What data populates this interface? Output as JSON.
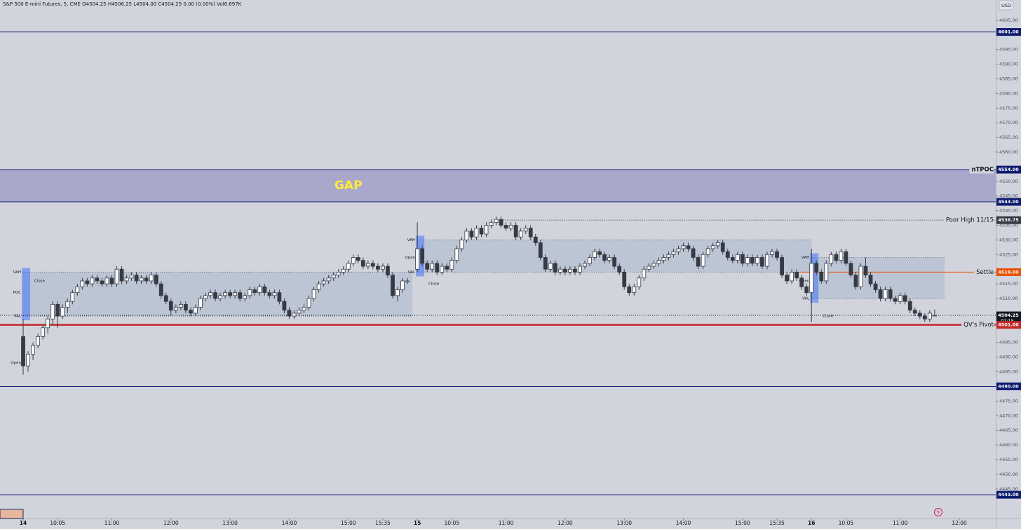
{
  "chart_data": {
    "type": "candlestick",
    "header": {
      "symbol": "S&P 500 E-mini Futures, 5, CME",
      "ohlc": "O4504.25 H4506.25 L4504.00 C4504.25",
      "change": "0.00 (0.00%)",
      "volume": "Vol6.697K"
    },
    "currency": "USD",
    "up_color": "#ffffff",
    "down_color": "#363a45",
    "xlim": [
      -4.7,
      197.4
    ],
    "ylim": [
      4434.9,
      4611.9
    ],
    "xticks": [
      {
        "value": 0,
        "label": "14"
      },
      {
        "value": 7,
        "label": "10:05"
      },
      {
        "value": 18,
        "label": "11:00"
      },
      {
        "value": 30,
        "label": "12:00"
      },
      {
        "value": 42,
        "label": "13:00"
      },
      {
        "value": 54,
        "label": "14:00"
      },
      {
        "value": 66,
        "label": "15:00"
      },
      {
        "value": 73,
        "label": "15:35"
      },
      {
        "value": 80,
        "label": "15"
      },
      {
        "value": 87,
        "label": "10:05"
      },
      {
        "value": 98,
        "label": "11:00"
      },
      {
        "value": 110,
        "label": "12:00"
      },
      {
        "value": 122,
        "label": "13:00"
      },
      {
        "value": 134,
        "label": "14:00"
      },
      {
        "value": 146,
        "label": "15:00"
      },
      {
        "value": 153,
        "label": "15:35"
      },
      {
        "value": 160,
        "label": "16"
      },
      {
        "value": 167,
        "label": "10:05"
      },
      {
        "value": 178,
        "label": "11:00"
      },
      {
        "value": 190,
        "label": "12:00"
      }
    ],
    "yticks": [
      {
        "value": 4605,
        "label": "4605.00"
      },
      {
        "value": 4595,
        "label": "4595.00"
      },
      {
        "value": 4590,
        "label": "4590.00"
      },
      {
        "value": 4585,
        "label": "4585.00"
      },
      {
        "value": 4580,
        "label": "4580.00"
      },
      {
        "value": 4575,
        "label": "4575.00"
      },
      {
        "value": 4570,
        "label": "4570.00"
      },
      {
        "value": 4565,
        "label": "4565.00"
      },
      {
        "value": 4560,
        "label": "4560.00"
      },
      {
        "value": 4550,
        "label": "4550.00"
      },
      {
        "value": 4545,
        "label": "4545.00"
      },
      {
        "value": 4540,
        "label": "4540.00"
      },
      {
        "value": 4535,
        "label": "4535.00"
      },
      {
        "value": 4530,
        "label": "4530.00"
      },
      {
        "value": 4525,
        "label": "4525.00"
      },
      {
        "value": 4515,
        "label": "4515.00"
      },
      {
        "value": 4510,
        "label": "4510.00"
      },
      {
        "value": 4495,
        "label": "4495.00"
      },
      {
        "value": 4490,
        "label": "4490.00"
      },
      {
        "value": 4485,
        "label": "4485.00"
      },
      {
        "value": 4475,
        "label": "4475.00"
      },
      {
        "value": 4470,
        "label": "4470.00"
      },
      {
        "value": 4465,
        "label": "4465.00"
      },
      {
        "value": 4460,
        "label": "4460.00"
      },
      {
        "value": 4455,
        "label": "4455.00"
      },
      {
        "value": 4450,
        "label": "4450.00"
      },
      {
        "value": 4445,
        "label": "4445.00"
      }
    ],
    "gap": {
      "from": 4543,
      "to": 4554,
      "label": "GAP",
      "color": "#a9a8cc",
      "label_color": "#ffeb3b"
    },
    "levels": [
      {
        "value": 4601,
        "label": "4601.00",
        "color": "#0d1b6e",
        "style": "solid"
      },
      {
        "value": 4554,
        "label": "4554.00",
        "color": "#0d1b6e",
        "style": "solid",
        "name": "nTPOC"
      },
      {
        "value": 4543,
        "label": "4543.00",
        "color": "#0d1b6e",
        "style": "solid"
      },
      {
        "value": 4536.75,
        "label": "4536.75",
        "color": "#363a45",
        "style": "dotted",
        "from": 97,
        "name": "Poor High 11/15"
      },
      {
        "value": 4519,
        "label": "4519.00",
        "color": "#e65100",
        "style": "solid",
        "from": 157,
        "name": "Settle"
      },
      {
        "value": 4504.25,
        "label": "4504.25",
        "countdown": "02:15",
        "color": "#131722",
        "style": "dotted"
      },
      {
        "value": 4501,
        "label": "4501.00",
        "color": "#c62828",
        "style": "solid",
        "line_width": 2.5,
        "name": "QV's Pivot"
      },
      {
        "value": 4480,
        "label": "4480.00",
        "color": "#0d1b6e",
        "style": "solid"
      },
      {
        "value": 4443,
        "label": "4443.00",
        "color": "#0d1b6e",
        "style": "solid"
      }
    ],
    "value_areas": [
      {
        "start": 0,
        "end": 79,
        "vah": 4519,
        "val": 4504,
        "marks": [
          {
            "label": "VAH",
            "value": 4519
          },
          {
            "label": "POC",
            "value": 4512
          },
          {
            "label": "VAL",
            "value": 4504
          },
          {
            "label": "Open",
            "value": 4488
          }
        ],
        "close": {
          "label": "Close",
          "value": 4516
        }
      },
      {
        "start": 80,
        "end": 160,
        "vah": 4530,
        "val": 4519,
        "marks": [
          {
            "label": "VAH",
            "value": 4530
          },
          {
            "label": "Open",
            "value": 4524
          },
          {
            "label": "VAL",
            "value": 4519
          }
        ],
        "close": {
          "label": "Close",
          "value": 4515
        }
      },
      {
        "start": 160,
        "end": 187,
        "vah": 4524,
        "val": 4510,
        "marks": [
          {
            "label": "VAH",
            "value": 4524
          },
          {
            "label": "Open",
            "value": 4516
          },
          {
            "label": "VAL",
            "value": 4510
          }
        ],
        "close": {
          "label": "Close",
          "value": 4504
        }
      }
    ],
    "candles": [
      [
        4497,
        4503,
        4484,
        4487
      ],
      [
        4487,
        4492,
        4485,
        4491
      ],
      [
        4491,
        4495,
        4489,
        4494
      ],
      [
        4494,
        4498,
        4493,
        4497
      ],
      [
        4497,
        4501,
        4496,
        4500
      ],
      [
        4500,
        4504,
        4498,
        4503
      ],
      [
        4503,
        4509,
        4501,
        4508
      ],
      [
        4508,
        4509,
        4500,
        4504
      ],
      [
        4504,
        4508,
        4503,
        4507
      ],
      [
        4507,
        4510,
        4505,
        4509
      ],
      [
        4509,
        4513,
        4508,
        4512
      ],
      [
        4512,
        4515,
        4511,
        4514
      ],
      [
        4514,
        4517,
        4513,
        4516
      ],
      [
        4516,
        4517,
        4514,
        4515
      ],
      [
        4515,
        4518,
        4514,
        4517
      ],
      [
        4517,
        4518,
        4515,
        4516
      ],
      [
        4516,
        4517,
        4514,
        4515
      ],
      [
        4515,
        4518,
        4514,
        4517
      ],
      [
        4517,
        4518,
        4514,
        4515
      ],
      [
        4515,
        4521,
        4514,
        4520
      ],
      [
        4520,
        4521,
        4515,
        4516
      ],
      [
        4516,
        4518,
        4515,
        4517
      ],
      [
        4517,
        4519,
        4516,
        4518
      ],
      [
        4518,
        4519,
        4515,
        4516
      ],
      [
        4516,
        4518,
        4515,
        4517
      ],
      [
        4517,
        4518,
        4515,
        4516
      ],
      [
        4516,
        4519,
        4515,
        4518
      ],
      [
        4518,
        4519,
        4514,
        4515
      ],
      [
        4515,
        4516,
        4510,
        4511
      ],
      [
        4511,
        4512,
        4508,
        4509
      ],
      [
        4509,
        4510,
        4504,
        4506
      ],
      [
        4506,
        4508,
        4505,
        4507
      ],
      [
        4507,
        4509,
        4506,
        4508
      ],
      [
        4508,
        4509,
        4505,
        4506
      ],
      [
        4506,
        4507,
        4504,
        4505
      ],
      [
        4505,
        4508,
        4504,
        4507
      ],
      [
        4507,
        4511,
        4506,
        4510
      ],
      [
        4510,
        4512,
        4509,
        4511
      ],
      [
        4511,
        4513,
        4510,
        4512
      ],
      [
        4512,
        4513,
        4509,
        4510
      ],
      [
        4510,
        4512,
        4509,
        4511
      ],
      [
        4511,
        4513,
        4510,
        4512
      ],
      [
        4512,
        4513,
        4510,
        4511
      ],
      [
        4511,
        4513,
        4510,
        4512
      ],
      [
        4512,
        4513,
        4509,
        4510
      ],
      [
        4510,
        4512,
        4509,
        4511
      ],
      [
        4511,
        4514,
        4510,
        4513
      ],
      [
        4513,
        4514,
        4511,
        4512
      ],
      [
        4512,
        4515,
        4511,
        4514
      ],
      [
        4514,
        4515,
        4511,
        4512
      ],
      [
        4512,
        4513,
        4510,
        4511
      ],
      [
        4511,
        4513,
        4510,
        4512
      ],
      [
        4512,
        4513,
        4508,
        4509
      ],
      [
        4509,
        4510,
        4505,
        4506
      ],
      [
        4506,
        4507,
        4503,
        4504
      ],
      [
        4504,
        4506,
        4503,
        4505
      ],
      [
        4505,
        4507,
        4504,
        4506
      ],
      [
        4506,
        4508,
        4505,
        4507
      ],
      [
        4507,
        4511,
        4506,
        4510
      ],
      [
        4510,
        4514,
        4509,
        4513
      ],
      [
        4513,
        4516,
        4512,
        4515
      ],
      [
        4515,
        4517,
        4514,
        4516
      ],
      [
        4516,
        4518,
        4515,
        4517
      ],
      [
        4517,
        4519,
        4516,
        4518
      ],
      [
        4518,
        4520,
        4517,
        4519
      ],
      [
        4519,
        4521,
        4518,
        4520
      ],
      [
        4520,
        4523,
        4519,
        4522
      ],
      [
        4522,
        4525,
        4521,
        4524
      ],
      [
        4524,
        4525,
        4522,
        4523
      ],
      [
        4523,
        4524,
        4520,
        4521
      ],
      [
        4521,
        4523,
        4520,
        4522
      ],
      [
        4522,
        4523,
        4520,
        4521
      ],
      [
        4521,
        4522,
        4519,
        4520
      ],
      [
        4520,
        4522,
        4519,
        4521
      ],
      [
        4521,
        4522,
        4517,
        4518
      ],
      [
        4518,
        4519,
        4510,
        4511
      ],
      [
        4511,
        4514,
        4509,
        4513
      ],
      [
        4513,
        4517,
        4512,
        4516
      ],
      [
        4516,
        4517,
        4515,
        4516
      ],
      null,
      [
        4520,
        4536,
        4519,
        4527
      ],
      [
        4527,
        4528,
        4521,
        4522
      ],
      [
        4522,
        4523,
        4519,
        4520
      ],
      [
        4520,
        4523,
        4519,
        4522
      ],
      [
        4522,
        4523,
        4518,
        4519
      ],
      [
        4519,
        4522,
        4518,
        4521
      ],
      [
        4521,
        4522,
        4519,
        4520
      ],
      [
        4520,
        4524,
        4519,
        4523
      ],
      [
        4523,
        4528,
        4522,
        4527
      ],
      [
        4527,
        4531,
        4526,
        4530
      ],
      [
        4530,
        4534,
        4529,
        4533
      ],
      [
        4533,
        4534,
        4530,
        4531
      ],
      [
        4531,
        4535,
        4530,
        4534
      ],
      [
        4534,
        4535,
        4531,
        4532
      ],
      [
        4532,
        4536,
        4531,
        4535
      ],
      [
        4535,
        4537,
        4534,
        4536
      ],
      [
        4536,
        4538,
        4535,
        4537
      ],
      [
        4537,
        4538,
        4534,
        4535
      ],
      [
        4535,
        4536,
        4533,
        4534
      ],
      [
        4534,
        4536,
        4533,
        4535
      ],
      [
        4535,
        4536,
        4530,
        4531
      ],
      [
        4531,
        4534,
        4530,
        4533
      ],
      [
        4533,
        4535,
        4532,
        4534
      ],
      [
        4534,
        4535,
        4530,
        4531
      ],
      [
        4531,
        4532,
        4528,
        4529
      ],
      [
        4529,
        4530,
        4523,
        4524
      ],
      [
        4524,
        4525,
        4519,
        4520
      ],
      [
        4520,
        4523,
        4519,
        4522
      ],
      [
        4522,
        4523,
        4518,
        4519
      ],
      [
        4519,
        4521,
        4518,
        4520
      ],
      [
        4520,
        4521,
        4518,
        4519
      ],
      [
        4519,
        4521,
        4518,
        4520
      ],
      [
        4520,
        4521,
        4518,
        4519
      ],
      [
        4519,
        4522,
        4518,
        4521
      ],
      [
        4521,
        4523,
        4520,
        4522
      ],
      [
        4522,
        4525,
        4521,
        4524
      ],
      [
        4524,
        4527,
        4523,
        4526
      ],
      [
        4526,
        4527,
        4524,
        4525
      ],
      [
        4525,
        4526,
        4522,
        4523
      ],
      [
        4523,
        4525,
        4522,
        4524
      ],
      [
        4524,
        4525,
        4520,
        4521
      ],
      [
        4521,
        4522,
        4518,
        4519
      ],
      [
        4519,
        4520,
        4513,
        4514
      ],
      [
        4514,
        4515,
        4511,
        4512
      ],
      [
        4512,
        4515,
        4511,
        4514
      ],
      [
        4514,
        4518,
        4513,
        4517
      ],
      [
        4517,
        4521,
        4516,
        4520
      ],
      [
        4520,
        4522,
        4519,
        4521
      ],
      [
        4521,
        4523,
        4520,
        4522
      ],
      [
        4522,
        4524,
        4521,
        4523
      ],
      [
        4523,
        4525,
        4522,
        4524
      ],
      [
        4524,
        4526,
        4523,
        4525
      ],
      [
        4525,
        4527,
        4524,
        4526
      ],
      [
        4526,
        4528,
        4525,
        4527
      ],
      [
        4527,
        4529,
        4526,
        4528
      ],
      [
        4528,
        4529,
        4526,
        4527
      ],
      [
        4527,
        4528,
        4523,
        4524
      ],
      [
        4524,
        4525,
        4520,
        4521
      ],
      [
        4521,
        4526,
        4520,
        4525
      ],
      [
        4525,
        4528,
        4524,
        4527
      ],
      [
        4527,
        4529,
        4526,
        4528
      ],
      [
        4528,
        4530,
        4527,
        4529
      ],
      [
        4529,
        4530,
        4525,
        4526
      ],
      [
        4526,
        4527,
        4523,
        4524
      ],
      [
        4524,
        4525,
        4522,
        4523
      ],
      [
        4523,
        4526,
        4522,
        4525
      ],
      [
        4525,
        4526,
        4521,
        4522
      ],
      [
        4522,
        4525,
        4521,
        4524
      ],
      [
        4524,
        4525,
        4521,
        4522
      ],
      [
        4522,
        4525,
        4521,
        4524
      ],
      [
        4524,
        4525,
        4520,
        4521
      ],
      [
        4521,
        4526,
        4520,
        4525
      ],
      [
        4525,
        4527,
        4524,
        4526
      ],
      [
        4526,
        4527,
        4523,
        4524
      ],
      [
        4524,
        4525,
        4517,
        4518
      ],
      [
        4518,
        4519,
        4515,
        4516
      ],
      [
        4516,
        4520,
        4515,
        4519
      ],
      [
        4519,
        4520,
        4516,
        4517
      ],
      [
        4517,
        4518,
        4513,
        4514
      ],
      [
        4514,
        4515,
        4511,
        4512
      ],
      [
        4512,
        4527,
        4502,
        4522
      ],
      [
        4522,
        4523,
        4518,
        4519
      ],
      [
        4519,
        4520,
        4515,
        4516
      ],
      [
        4516,
        4523,
        4515,
        4522
      ],
      [
        4522,
        4526,
        4521,
        4525
      ],
      [
        4525,
        4526,
        4522,
        4523
      ],
      [
        4523,
        4527,
        4522,
        4526
      ],
      [
        4526,
        4527,
        4521,
        4522
      ],
      [
        4522,
        4523,
        4517,
        4518
      ],
      [
        4518,
        4519,
        4513,
        4514
      ],
      [
        4514,
        4522,
        4513,
        4521
      ],
      [
        4521,
        4524,
        4517,
        4518
      ],
      [
        4518,
        4519,
        4514,
        4515
      ],
      [
        4515,
        4516,
        4512,
        4513
      ],
      [
        4513,
        4514,
        4509,
        4510
      ],
      [
        4510,
        4514,
        4509,
        4513
      ],
      [
        4513,
        4514,
        4509,
        4510
      ],
      [
        4510,
        4511,
        4508,
        4509
      ],
      [
        4509,
        4512,
        4508,
        4511
      ],
      [
        4511,
        4512,
        4508,
        4509
      ],
      [
        4509,
        4510,
        4505,
        4506
      ],
      [
        4506,
        4507,
        4504,
        4505
      ],
      [
        4505,
        4506,
        4503,
        4504
      ],
      [
        4504,
        4505,
        4502,
        4503
      ],
      [
        4503,
        4506,
        4502,
        4505
      ],
      [
        4504.25,
        4506.25,
        4504,
        4504.25
      ]
    ]
  }
}
